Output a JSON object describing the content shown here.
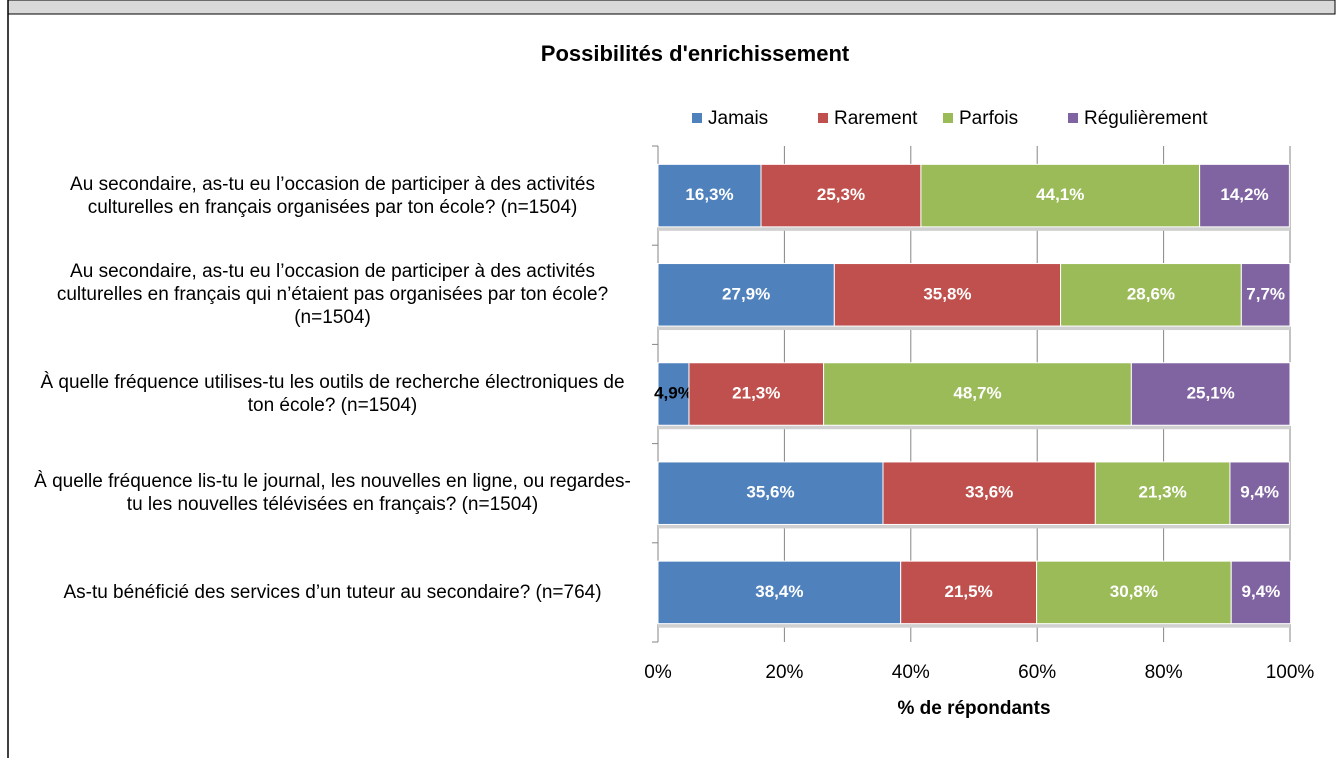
{
  "chart_data": {
    "type": "stacked-bar-horizontal",
    "title": "Possibilités d'enrichissement",
    "xlabel": "% de répondants",
    "categories": [
      "Au secondaire, as-tu eu l’occasion de participer à des activités culturelles en français organisées par ton école? (n=1504)",
      "Au secondaire, as-tu eu l’occasion de participer à des activités culturelles en français qui n’étaient pas organisées par ton école? (n=1504)",
      "À quelle fréquence utilises-tu les outils de recherche électroniques de ton école? (n=1504)",
      "À quelle fréquence lis-tu le journal, les nouvelles en ligne, ou regardes-tu les nouvelles télévisées en français? (n=1504)",
      "As-tu bénéficié des services d’un tuteur au secondaire? (n=764)"
    ],
    "series": [
      {
        "name": "Jamais",
        "color": "#4f81bd",
        "values": [
          16.3,
          27.9,
          4.9,
          35.6,
          38.4
        ],
        "value_labels": [
          "16,3%",
          "27,9%",
          "4,9%",
          "35,6%",
          "38,4%"
        ]
      },
      {
        "name": "Rarement",
        "color": "#c0504d",
        "values": [
          25.3,
          35.8,
          21.3,
          33.6,
          21.5
        ],
        "value_labels": [
          "25,3%",
          "35,8%",
          "21,3%",
          "33,6%",
          "21,5%"
        ]
      },
      {
        "name": "Parfois",
        "color": "#9bbb59",
        "values": [
          44.1,
          28.6,
          48.7,
          21.3,
          30.8
        ],
        "value_labels": [
          "44,1%",
          "28,6%",
          "48,7%",
          "21,3%",
          "30,8%"
        ]
      },
      {
        "name": "Régulièrement",
        "color": "#8064a2",
        "values": [
          14.2,
          7.7,
          25.1,
          9.4,
          9.4
        ],
        "value_labels": [
          "14,2%",
          "7,7%",
          "25,1%",
          "9,4%",
          "9,4%"
        ]
      }
    ],
    "xlim": [
      0,
      100
    ],
    "xticks": [
      {
        "value": 0,
        "label": "0%"
      },
      {
        "value": 20,
        "label": "20%"
      },
      {
        "value": 40,
        "label": "40%"
      },
      {
        "value": 60,
        "label": "60%"
      },
      {
        "value": 80,
        "label": "80%"
      },
      {
        "value": 100,
        "label": "100%"
      }
    ],
    "grid": true,
    "legend": "top"
  }
}
